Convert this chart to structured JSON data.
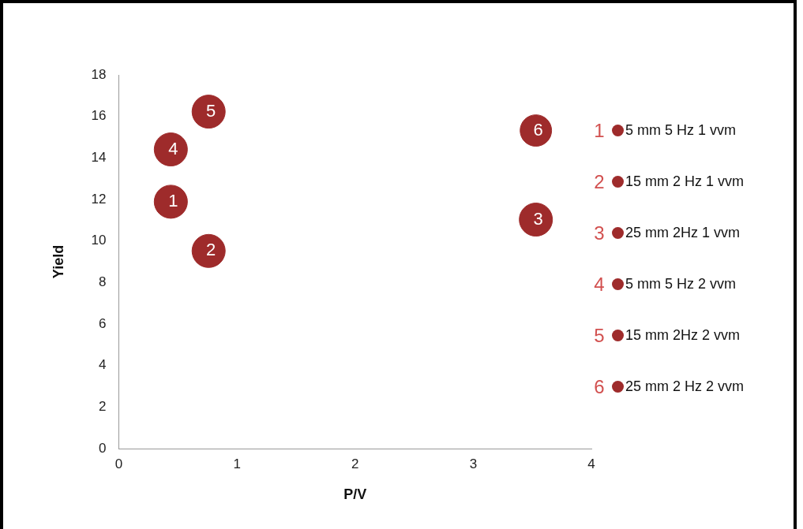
{
  "chart_data": {
    "type": "bubble",
    "xlabel": "P/V",
    "ylabel": "Yield",
    "xlim": [
      0,
      4
    ],
    "xticks": [
      0,
      1,
      2,
      3,
      4
    ],
    "ylim": [
      0,
      18
    ],
    "yticks": [
      0,
      2,
      4,
      6,
      8,
      10,
      12,
      14,
      16,
      18
    ],
    "grid": false,
    "legend": "right",
    "series": [
      {
        "name": "5 mm 5 Hz 1 vvm",
        "color": "#9e2b2b",
        "x": [
          0.44
        ],
        "values": [
          11.89
        ],
        "sizes": [
          1
        ]
      },
      {
        "name": "15 mm 2 Hz 1 vvm",
        "color": "#9e2b2b",
        "x": [
          0.76
        ],
        "values": [
          9.52
        ],
        "sizes": [
          1
        ]
      },
      {
        "name": "25 mm 2Hz 1 vvm",
        "color": "#9e2b2b",
        "x": [
          3.53
        ],
        "values": [
          11.03
        ],
        "sizes": [
          1
        ]
      },
      {
        "name": "5 mm 5 Hz 2 vvm",
        "color": "#9e2b2b",
        "x": [
          0.44
        ],
        "values": [
          14.41
        ],
        "sizes": [
          1
        ]
      },
      {
        "name": "15 mm 2Hz 2 vvm",
        "color": "#9e2b2b",
        "x": [
          0.76
        ],
        "values": [
          16.23
        ],
        "sizes": [
          1
        ]
      },
      {
        "name": "25 mm 2 Hz 2 vvm",
        "color": "#9e2b2b",
        "x": [
          3.53
        ],
        "values": [
          15.32
        ],
        "sizes": [
          0.9
        ]
      }
    ],
    "annotations": [
      {
        "text": "1",
        "x": 0.44,
        "y": 11.89
      },
      {
        "text": "2",
        "x": 0.76,
        "y": 9.52
      },
      {
        "text": "3",
        "x": 3.53,
        "y": 11.03
      },
      {
        "text": "4",
        "x": 0.44,
        "y": 14.41
      },
      {
        "text": "5",
        "x": 0.76,
        "y": 16.23
      },
      {
        "text": "6",
        "x": 3.53,
        "y": 15.32
      }
    ]
  }
}
